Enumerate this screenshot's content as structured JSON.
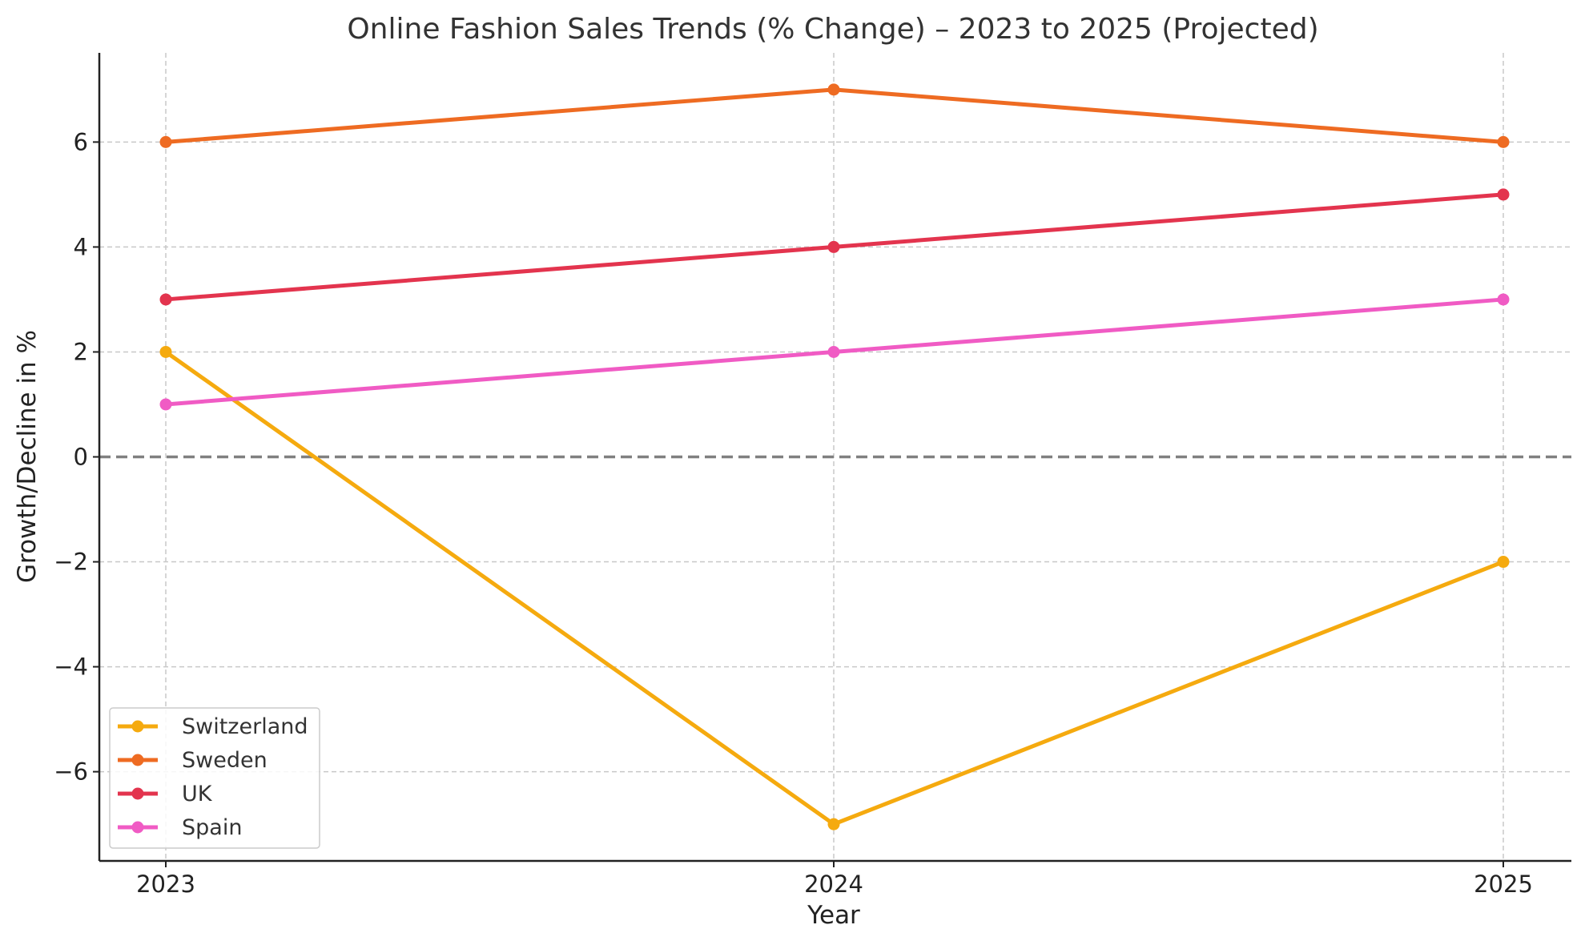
{
  "chart_data": {
    "type": "line",
    "title": "Online Fashion Sales Trends (% Change) – 2023 to 2025 (Projected)",
    "xlabel": "Year",
    "ylabel": "Growth/Decline in %",
    "x": [
      "2023",
      "2024",
      "2025"
    ],
    "ylim": [
      -7.7,
      7.7
    ],
    "yticks": [
      -6,
      -4,
      -2,
      0,
      2,
      4,
      6
    ],
    "ytick_labels": [
      "−6",
      "−4",
      "−2",
      "0",
      "2",
      "4",
      "6"
    ],
    "grid": true,
    "zero_line": 0,
    "legend_position": "lower-left",
    "series": [
      {
        "name": "Switzerland",
        "values": [
          2,
          -7,
          -2
        ],
        "color": "#F5AA0F"
      },
      {
        "name": "Sweden",
        "values": [
          6,
          7,
          6
        ],
        "color": "#EE6B22"
      },
      {
        "name": "UK",
        "values": [
          3,
          4,
          5
        ],
        "color": "#E3344E"
      },
      {
        "name": "Spain",
        "values": [
          1,
          2,
          3
        ],
        "color": "#F05BC4"
      }
    ]
  }
}
